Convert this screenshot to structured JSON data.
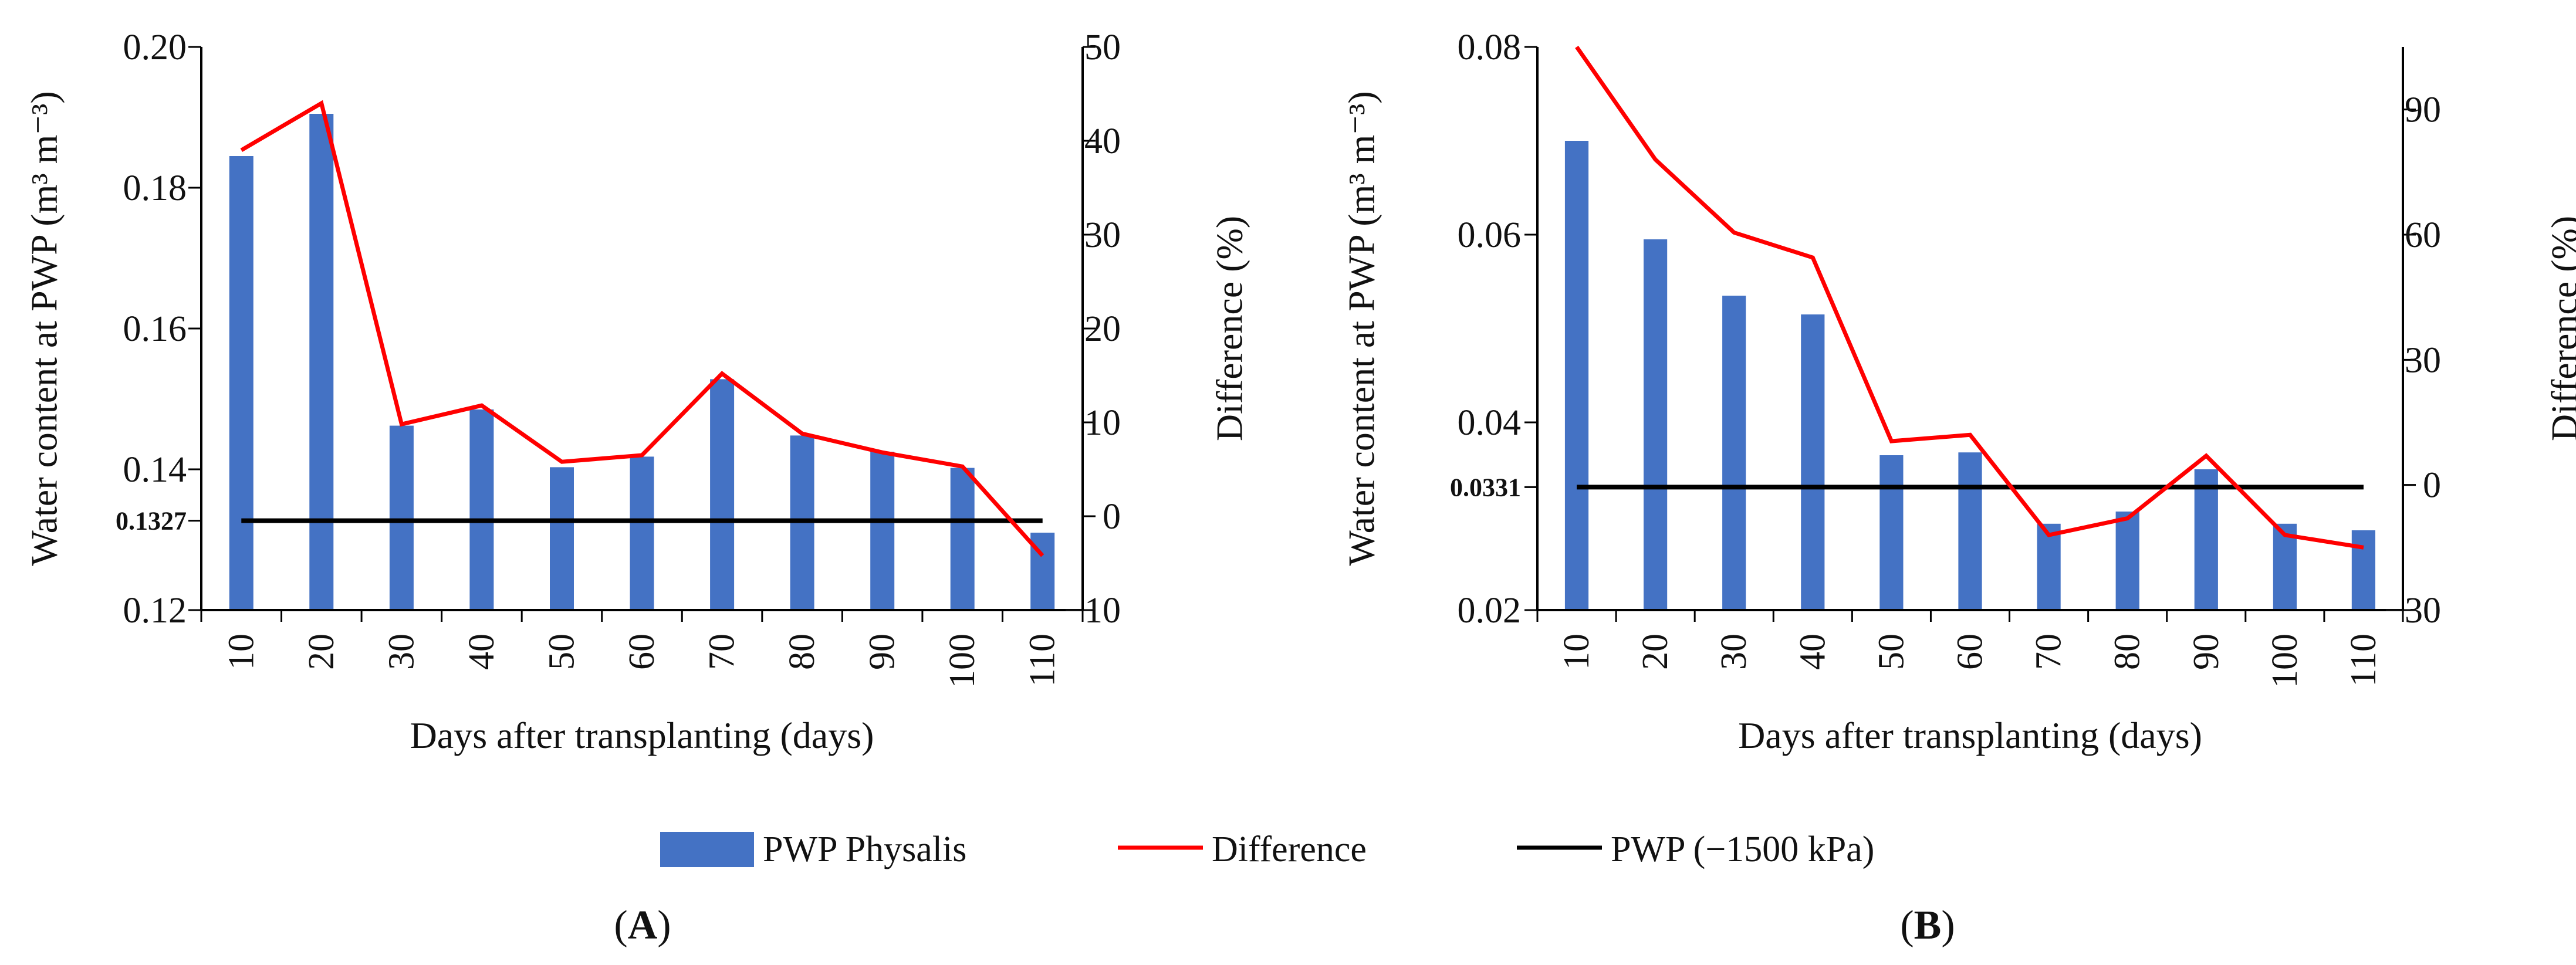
{
  "legend": {
    "bar_label": "PWP Physalis",
    "line_label": "Difference",
    "ref_label": "PWP (−1500 kPa)"
  },
  "colors": {
    "bar": "#4472c4",
    "difference": "#ff0000",
    "reference": "#000000",
    "axis": "#000000"
  },
  "chart_data": [
    {
      "type": "bar",
      "panel_label_prefix": "(",
      "panel_label_letter": "A",
      "panel_label_suffix": ")",
      "xlabel": "Days after transplanting (days)",
      "ylabel_left": "Water content at PWP (m³ m⁻³)",
      "ylabel_right": "Difference (%)",
      "categories": [
        "10",
        "20",
        "30",
        "40",
        "50",
        "60",
        "70",
        "80",
        "90",
        "100",
        "110"
      ],
      "ylim_left": [
        0.12,
        0.2
      ],
      "yticks_left": [
        0.12,
        0.14,
        0.16,
        0.18,
        0.2
      ],
      "ytick_labels_left": [
        "0.12",
        "0.14",
        "0.16",
        "0.18",
        "0.20"
      ],
      "ylim_right": [
        -10,
        50
      ],
      "yticks_right": [
        -10,
        0,
        10,
        20,
        30,
        40,
        50
      ],
      "ytick_labels_right": [
        "−10",
        "0",
        "10",
        "20",
        "30",
        "40",
        "50"
      ],
      "reference_value": 0.1327,
      "reference_label": "0.1327",
      "series": [
        {
          "name": "PWP Physalis",
          "axis": "left",
          "kind": "bar",
          "values": [
            0.1845,
            0.1905,
            0.1462,
            0.1485,
            0.1403,
            0.1418,
            0.1528,
            0.1448,
            0.1425,
            0.1402,
            0.131
          ]
        },
        {
          "name": "Difference",
          "axis": "right",
          "kind": "line",
          "values": [
            39.0,
            44.0,
            9.8,
            11.8,
            5.8,
            6.5,
            15.2,
            8.8,
            6.8,
            5.3,
            -4.2
          ]
        }
      ]
    },
    {
      "type": "bar",
      "panel_label_prefix": "(",
      "panel_label_letter": "B",
      "panel_label_suffix": ")",
      "xlabel": "Days after transplanting (days)",
      "ylabel_left": "Water content at PWP (m³ m⁻³)",
      "ylabel_right": "Difference (%)",
      "categories": [
        "10",
        "20",
        "30",
        "40",
        "50",
        "60",
        "70",
        "80",
        "90",
        "100",
        "110"
      ],
      "ylim_left": [
        0.02,
        0.08
      ],
      "yticks_left": [
        0.02,
        0.04,
        0.06,
        0.08
      ],
      "ytick_labels_left": [
        "0.02",
        "0.04",
        "0.06",
        "0.08"
      ],
      "ylim_right": [
        -30,
        105
      ],
      "yticks_right": [
        -30,
        0,
        30,
        60,
        90
      ],
      "ytick_labels_right": [
        "−30",
        "0",
        "30",
        "60",
        "90"
      ],
      "reference_value": 0.0331,
      "reference_label": "0.0331",
      "series": [
        {
          "name": "PWP Physalis",
          "axis": "left",
          "kind": "bar",
          "values": [
            0.07,
            0.0595,
            0.0535,
            0.0515,
            0.0365,
            0.0368,
            0.0292,
            0.0305,
            0.035,
            0.0292,
            0.0285
          ]
        },
        {
          "name": "Difference",
          "axis": "right",
          "kind": "line",
          "values": [
            105,
            78.0,
            60.5,
            54.5,
            10.5,
            12.0,
            -12.0,
            -8.0,
            7.0,
            -12.0,
            -15.0
          ]
        }
      ]
    }
  ]
}
